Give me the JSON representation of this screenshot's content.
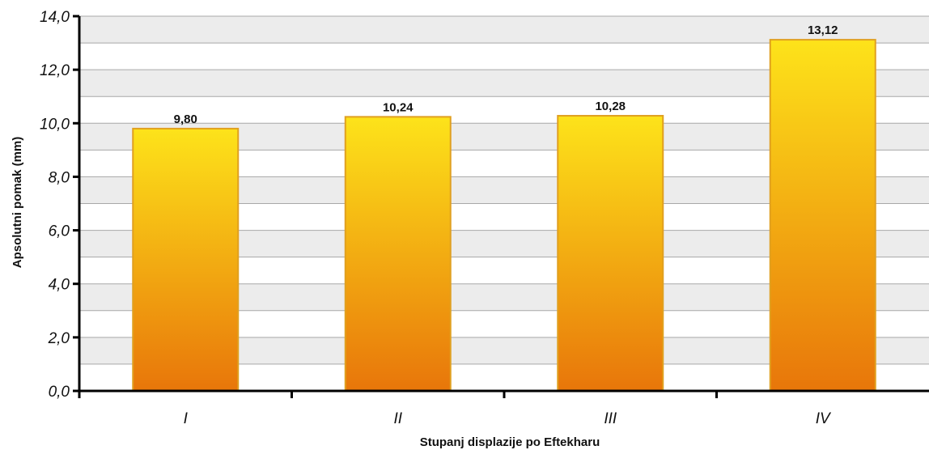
{
  "chart_data": {
    "type": "bar",
    "title": "",
    "xlabel": "Stupanj displazije po Eftekharu",
    "ylabel": "Apsolutni pomak (mm)",
    "categories": [
      "I",
      "II",
      "III",
      "IV"
    ],
    "values": [
      9.8,
      10.24,
      10.28,
      13.12
    ],
    "value_labels": [
      "9,80",
      "10,24",
      "10,28",
      "13,12"
    ],
    "ylim": [
      0,
      14
    ],
    "yticks": [
      0,
      2,
      4,
      6,
      8,
      10,
      12,
      14
    ],
    "ytick_labels": [
      "0,0",
      "2,0",
      "4,0",
      "6,0",
      "8,0",
      "10,0",
      "12,0",
      "14,0"
    ],
    "grid": true,
    "grid_bands": true,
    "legend": "none",
    "colors": {
      "bar_top": "#fde31a",
      "bar_bottom": "#e8760a",
      "bar_stroke": "#e0a020",
      "band": "#ececec",
      "gridline": "#a8a8a8",
      "axis": "#000000"
    }
  }
}
